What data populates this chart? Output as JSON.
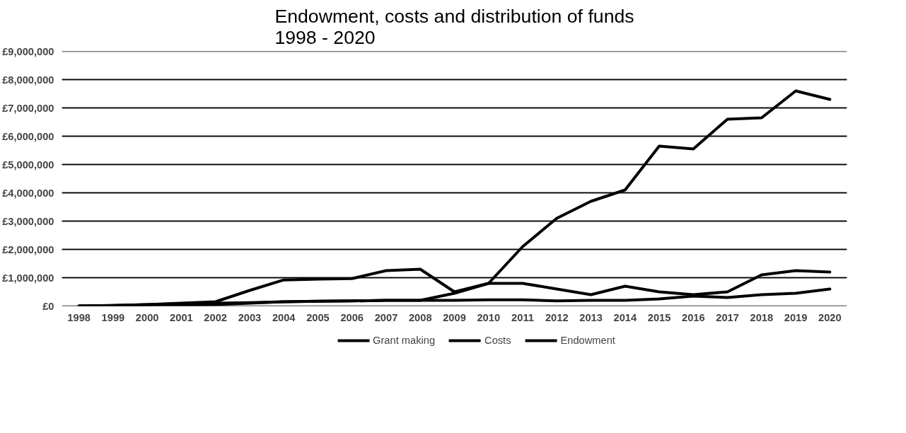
{
  "chart_data": {
    "type": "line",
    "title": "Endowment, costs and distribution of funds\n1998 - 2020",
    "categories": [
      "1998",
      "1999",
      "2000",
      "2001",
      "2002",
      "2003",
      "2004",
      "2005",
      "2006",
      "2007",
      "2008",
      "2009",
      "2010",
      "2011",
      "2012",
      "2013",
      "2014",
      "2015",
      "2016",
      "2017",
      "2018",
      "2019",
      "2020"
    ],
    "series": [
      {
        "name": "Grant making",
        "color": "#000000",
        "values": [
          0,
          20000,
          50000,
          100000,
          150000,
          550000,
          920000,
          950000,
          970000,
          1250000,
          1300000,
          500000,
          800000,
          800000,
          600000,
          400000,
          700000,
          500000,
          400000,
          500000,
          1100000,
          1250000,
          1200000
        ]
      },
      {
        "name": "Costs",
        "color": "#000000",
        "values": [
          0,
          20000,
          50000,
          80000,
          100000,
          120000,
          150000,
          170000,
          180000,
          200000,
          200000,
          200000,
          220000,
          220000,
          180000,
          200000,
          200000,
          250000,
          350000,
          300000,
          400000,
          450000,
          600000
        ]
      },
      {
        "name": "Endowment",
        "color": "#000000",
        "values": [
          0,
          10000,
          20000,
          30000,
          50000,
          100000,
          150000,
          170000,
          180000,
          200000,
          200000,
          450000,
          800000,
          2100000,
          3100000,
          3700000,
          4100000,
          5650000,
          5550000,
          6600000,
          6650000,
          7600000,
          7300000
        ]
      }
    ],
    "ylim": [
      0,
      9000000
    ],
    "yticks": [
      {
        "value": 0,
        "label": "£0"
      },
      {
        "value": 1000000,
        "label": "£1,000,000"
      },
      {
        "value": 2000000,
        "label": "£2,000,000"
      },
      {
        "value": 3000000,
        "label": "£3,000,000"
      },
      {
        "value": 4000000,
        "label": "£4,000,000"
      },
      {
        "value": 5000000,
        "label": "£5,000,000"
      },
      {
        "value": 6000000,
        "label": "£6,000,000"
      },
      {
        "value": 7000000,
        "label": "£7,000,000"
      },
      {
        "value": 8000000,
        "label": "£8,000,000"
      },
      {
        "value": 9000000,
        "label": "£9,000,000"
      }
    ],
    "grid": "y",
    "legend": "bottom",
    "line_style": "solid",
    "marker": "none"
  }
}
